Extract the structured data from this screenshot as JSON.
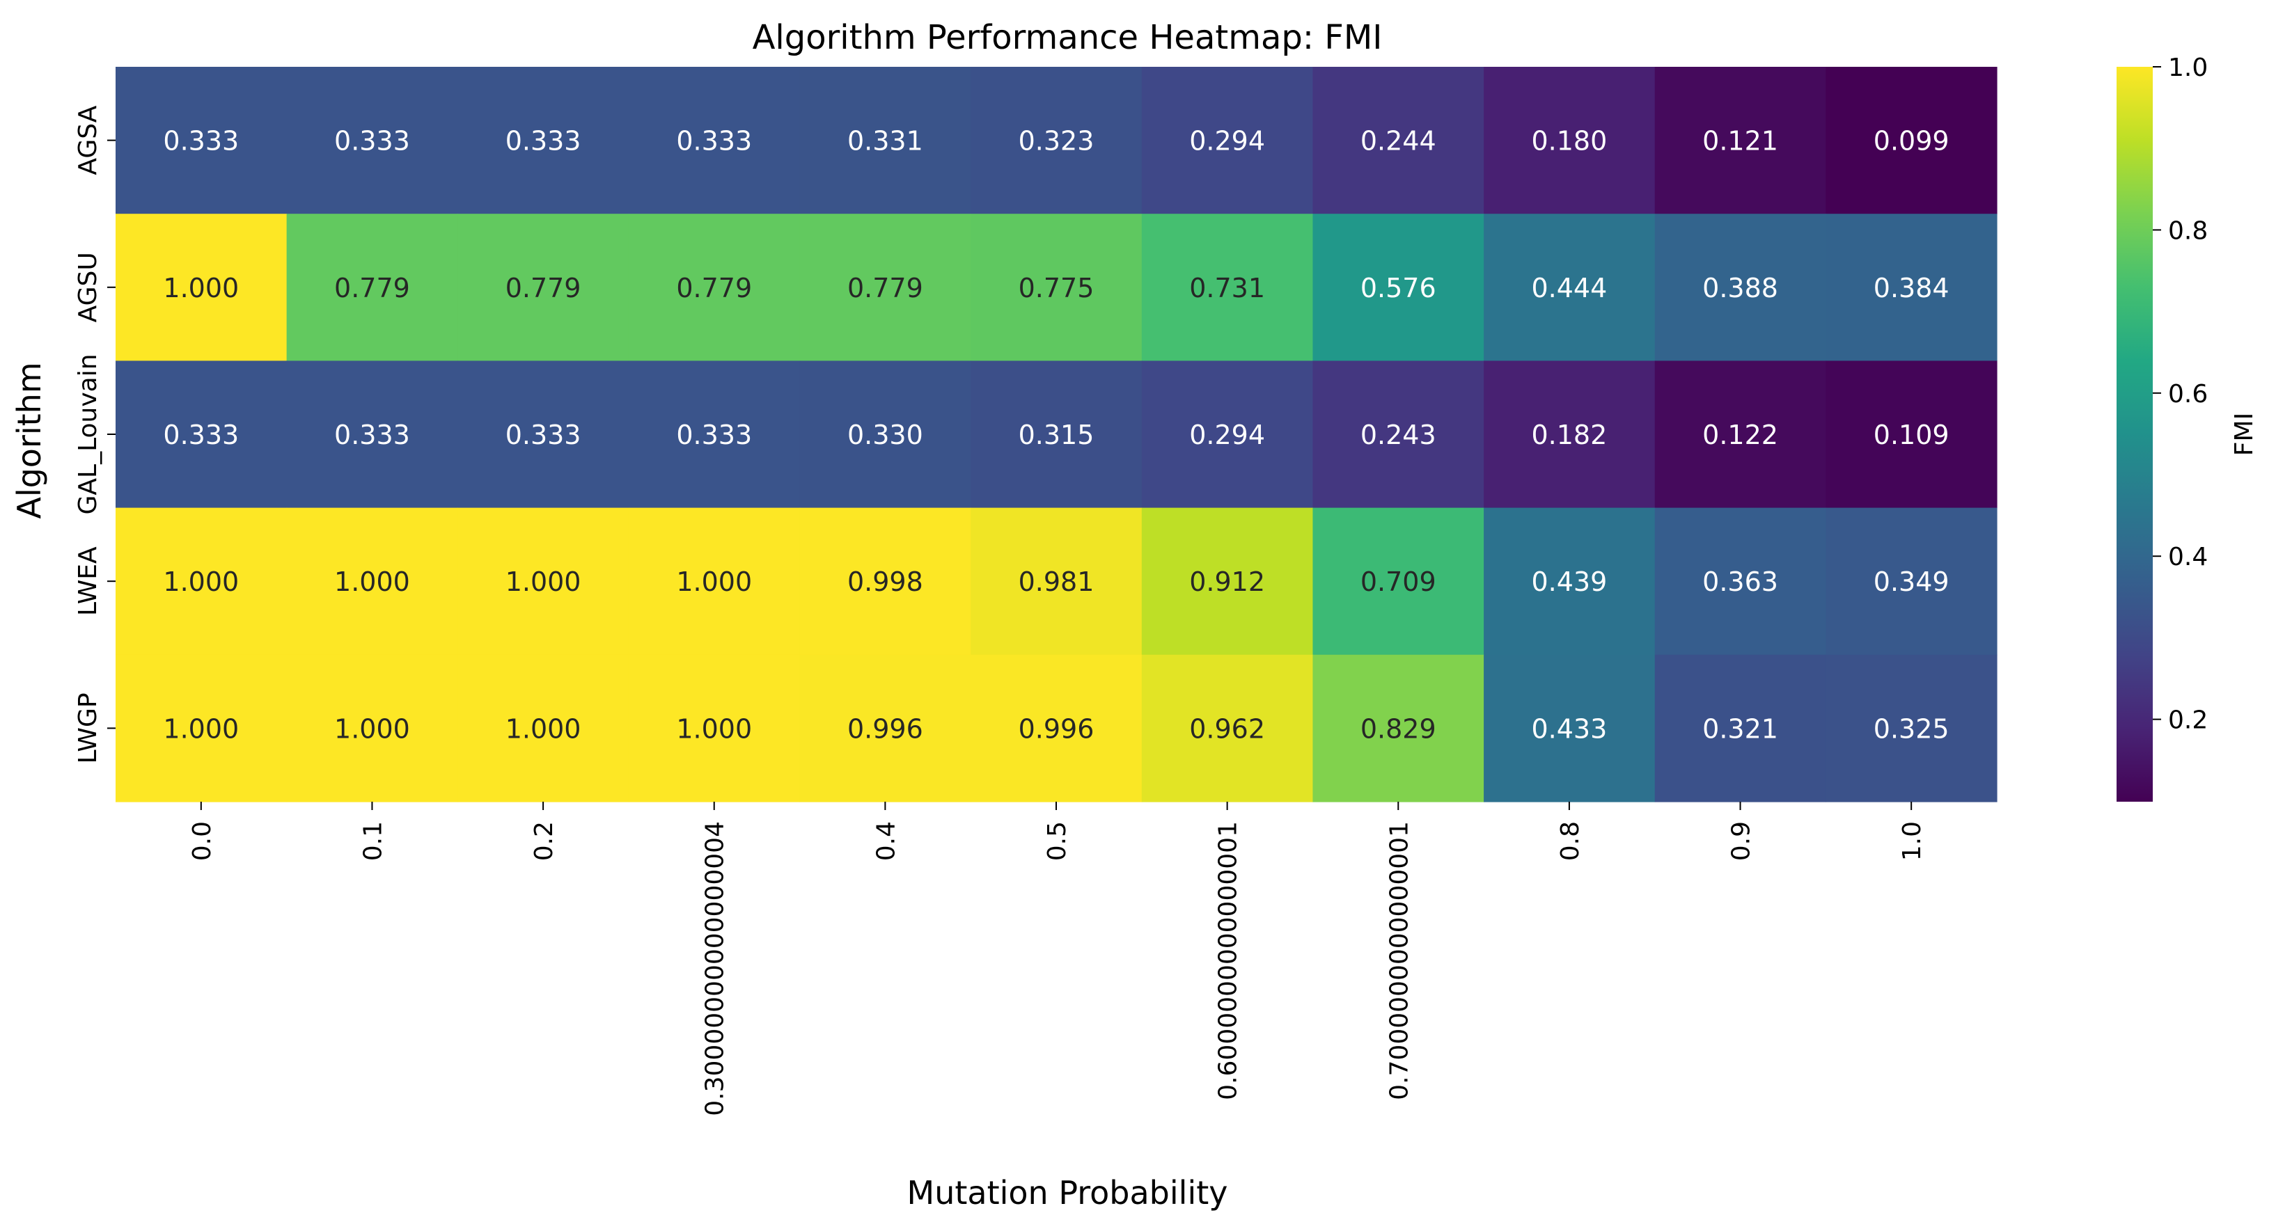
{
  "chart_data": {
    "type": "heatmap",
    "title": "Algorithm Performance Heatmap: FMI",
    "xlabel": "Mutation Probability",
    "ylabel": "Algorithm",
    "x_categories": [
      "0.0",
      "0.1",
      "0.2",
      "0.30000000000000004",
      "0.4",
      "0.5",
      "0.6000000000000001",
      "0.7000000000000001",
      "0.8",
      "0.9",
      "1.0"
    ],
    "y_categories": [
      "AGSA",
      "AGSU",
      "GAL_Louvain",
      "LWEA",
      "LWGP"
    ],
    "values": [
      [
        0.333,
        0.333,
        0.333,
        0.333,
        0.331,
        0.323,
        0.294,
        0.244,
        0.18,
        0.121,
        0.099
      ],
      [
        1.0,
        0.779,
        0.779,
        0.779,
        0.779,
        0.775,
        0.731,
        0.576,
        0.444,
        0.388,
        0.384
      ],
      [
        0.333,
        0.333,
        0.333,
        0.333,
        0.33,
        0.315,
        0.294,
        0.243,
        0.182,
        0.122,
        0.109
      ],
      [
        1.0,
        1.0,
        1.0,
        1.0,
        0.998,
        0.981,
        0.912,
        0.709,
        0.439,
        0.363,
        0.349
      ],
      [
        1.0,
        1.0,
        1.0,
        1.0,
        0.996,
        0.996,
        0.962,
        0.829,
        0.433,
        0.321,
        0.325
      ]
    ],
    "value_labels": [
      [
        "0.333",
        "0.333",
        "0.333",
        "0.333",
        "0.331",
        "0.323",
        "0.294",
        "0.244",
        "0.180",
        "0.121",
        "0.099"
      ],
      [
        "1.000",
        "0.779",
        "0.779",
        "0.779",
        "0.779",
        "0.775",
        "0.731",
        "0.576",
        "0.444",
        "0.388",
        "0.384"
      ],
      [
        "0.333",
        "0.333",
        "0.333",
        "0.333",
        "0.330",
        "0.315",
        "0.294",
        "0.243",
        "0.182",
        "0.122",
        "0.109"
      ],
      [
        "1.000",
        "1.000",
        "1.000",
        "1.000",
        "0.998",
        "0.981",
        "0.912",
        "0.709",
        "0.439",
        "0.363",
        "0.349"
      ],
      [
        "1.000",
        "1.000",
        "1.000",
        "1.000",
        "0.996",
        "0.996",
        "0.962",
        "0.829",
        "0.433",
        "0.321",
        "0.325"
      ]
    ],
    "colormap": "viridis",
    "colorbar": {
      "label": "FMI",
      "range": [
        0.099,
        1.0
      ],
      "ticks": [
        0.2,
        0.4,
        0.6,
        0.8,
        1.0
      ],
      "tick_labels": [
        "0.2",
        "0.4",
        "0.6",
        "0.8",
        "1.0"
      ]
    },
    "grid": false,
    "legend": "colorbar-right"
  }
}
